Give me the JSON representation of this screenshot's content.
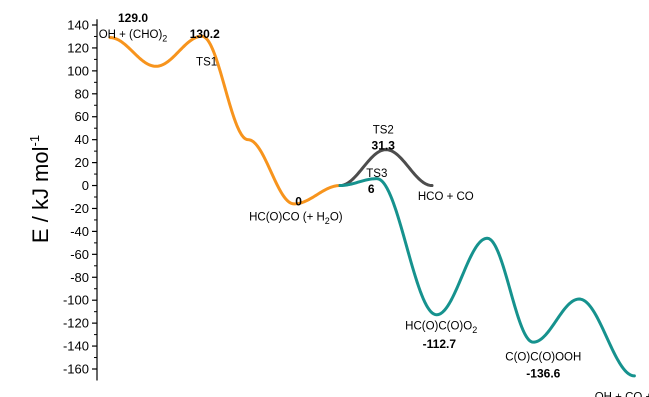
{
  "chart_data": {
    "type": "line",
    "title": "",
    "xlabel": "",
    "ylabel": "E / kJ mol",
    "ylabel_superscript": "-1",
    "ylim": [
      -170,
      145
    ],
    "yticks": [
      140,
      120,
      100,
      80,
      60,
      40,
      20,
      0,
      -20,
      -40,
      -60,
      -80,
      -100,
      -120,
      -140,
      -160
    ],
    "grid": false,
    "legend": "none",
    "colors": {
      "orange": "#F7941D",
      "gray": "#4D4D4D",
      "teal": "#16928E"
    },
    "series": [
      {
        "color": "orange",
        "points": [
          {
            "x": 0.0,
            "y": 129.0
          },
          {
            "x": 0.5,
            "y": 104.0
          },
          {
            "x": 1.0,
            "y": 130.2
          },
          {
            "x": 1.5,
            "y": 40.0
          },
          {
            "x": 2.0,
            "y": -16.0
          },
          {
            "x": 2.5,
            "y": 0.0
          }
        ]
      },
      {
        "color": "gray",
        "points": [
          {
            "x": 2.5,
            "y": 0.0
          },
          {
            "x": 3.0,
            "y": 31.3
          },
          {
            "x": 3.5,
            "y": 0.0
          }
        ]
      },
      {
        "color": "teal",
        "points": [
          {
            "x": 2.5,
            "y": 0.0
          },
          {
            "x": 2.9,
            "y": 6.0
          },
          {
            "x": 3.55,
            "y": -112.7
          },
          {
            "x": 4.1,
            "y": -46.0
          },
          {
            "x": 4.6,
            "y": -136.6
          },
          {
            "x": 5.1,
            "y": -99.0
          },
          {
            "x": 5.7,
            "y": -166.0
          }
        ]
      }
    ],
    "annotations": [
      {
        "id": "e1",
        "text": "129.0",
        "bold": true,
        "x": 0.25,
        "y": 142.5
      },
      {
        "id": "s1",
        "text": "OH + (CHO)",
        "sub": "2",
        "bold": false,
        "x": 0.25,
        "y": 128.5
      },
      {
        "id": "e2",
        "text": "130.2",
        "bold": true,
        "x": 1.03,
        "y": 128.5
      },
      {
        "id": "s2",
        "text": "TS1",
        "bold": false,
        "x": 1.05,
        "y": 104.5
      },
      {
        "id": "s3",
        "text": "TS2",
        "bold": false,
        "x": 2.97,
        "y": 45.5
      },
      {
        "id": "e3",
        "text": "31.3",
        "bold": true,
        "x": 2.97,
        "y": 31.5
      },
      {
        "id": "s4",
        "text": "TS3",
        "bold": false,
        "x": 2.9,
        "y": 7.5
      },
      {
        "id": "e4",
        "text": "6",
        "bold": true,
        "x": 2.84,
        "y": -6.5
      },
      {
        "id": "s5",
        "text": "HCO + CO",
        "bold": false,
        "x": 3.65,
        "y": -12.5
      },
      {
        "id": "e5",
        "text": "0",
        "bold": true,
        "x": 2.05,
        "y": -17.5
      },
      {
        "id": "s6",
        "text": "HC(O)CO (+ H",
        "sub": "2",
        "tail": "O)",
        "bold": false,
        "x": 2.02,
        "y": -30.5
      },
      {
        "id": "s7",
        "text": "HC(O)C(O)O",
        "sub": "2",
        "bold": false,
        "x": 3.6,
        "y": -125.5
      },
      {
        "id": "e6",
        "text": "-112.7",
        "bold": true,
        "x": 3.58,
        "y": -141.5
      },
      {
        "id": "s8",
        "text": "C(O)C(O)OOH",
        "bold": false,
        "x": 4.71,
        "y": -152.5
      },
      {
        "id": "e7",
        "text": "-136.6",
        "bold": true,
        "x": 4.71,
        "y": -167.5
      },
      {
        "id": "s9",
        "text": "OH + CO + CO",
        "sub": "2",
        "bold": false,
        "x": 5.72,
        "y": -187.5
      }
    ]
  }
}
